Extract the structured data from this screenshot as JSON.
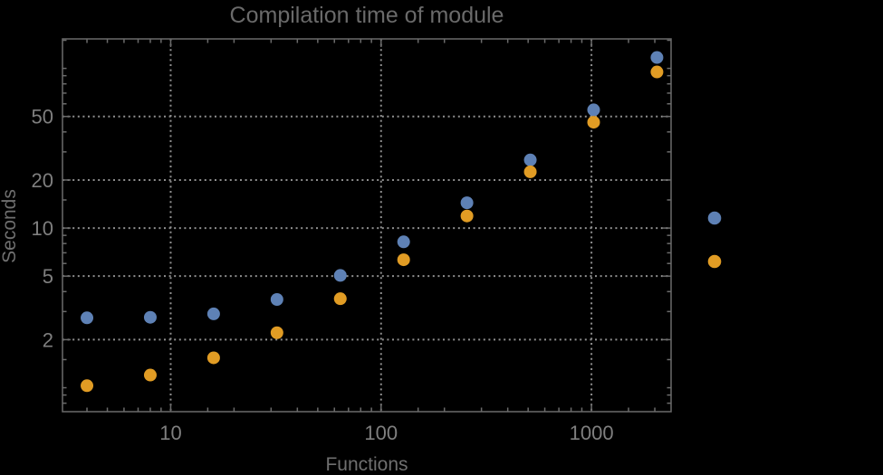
{
  "chart_data": {
    "type": "scatter",
    "title": "Compilation time of module",
    "xlabel": "Functions",
    "ylabel": "Seconds",
    "x_scale": "log",
    "y_scale": "log",
    "x_range": [
      3.06,
      2390
    ],
    "y_range": [
      0.708,
      153
    ],
    "x": [
      4,
      8,
      16,
      32,
      64,
      128,
      256,
      512,
      1024,
      2048
    ],
    "series": [
      {
        "name": "series-1",
        "color": "#5e81b5",
        "values": [
          2.74,
          2.76,
          2.9,
          3.57,
          5.05,
          8.2,
          14.4,
          26.7,
          55,
          117
        ]
      },
      {
        "name": "series-2",
        "color": "#e19c24",
        "values": [
          1.03,
          1.2,
          1.54,
          2.21,
          3.61,
          6.33,
          11.9,
          22.5,
          46,
          95
        ]
      }
    ],
    "x_ticks_labeled": [
      10,
      100,
      1000
    ],
    "x_tick_labels": [
      "10",
      "100",
      "1000"
    ],
    "x_ticks_minor": [
      4,
      5,
      6,
      7,
      8,
      9,
      15,
      20,
      30,
      40,
      50,
      60,
      70,
      80,
      90,
      150,
      200,
      300,
      400,
      500,
      600,
      700,
      800,
      900,
      1500,
      2000
    ],
    "y_ticks_labeled": [
      2,
      5,
      10,
      20,
      50
    ],
    "y_tick_labels": [
      "2",
      "5",
      "10",
      "20",
      "50"
    ],
    "y_ticks_minor": [
      0.8,
      0.9,
      1,
      1.5,
      3,
      4,
      6,
      7,
      8,
      9,
      15,
      30,
      40,
      60,
      70,
      80,
      90,
      100,
      150
    ],
    "grid": "dotted lines at labeled ticks, mirrored ticks on all frame sides",
    "legend": {
      "position": "right-outside",
      "markers": [
        {
          "name": "series-1",
          "color": "#5e81b5",
          "label": ""
        },
        {
          "name": "series-2",
          "color": "#e19c24",
          "label": ""
        }
      ]
    },
    "point_radius_px": 7,
    "colors": {
      "background": "#000000",
      "frame": "#6b6b6b",
      "gridline": "#8f8f8f",
      "tick_label": "#7f7f7f",
      "title_text": "#6a6a6a",
      "axis_label_text": "#6f6f6f"
    }
  }
}
